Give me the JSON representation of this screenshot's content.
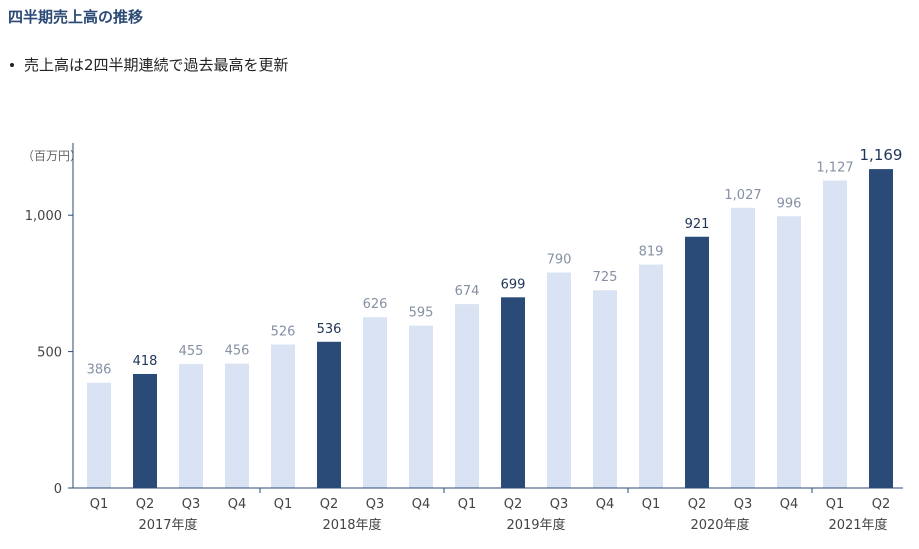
{
  "header": {
    "title": "四半期売上高の推移",
    "bullet": "売上高は2四半期連続で過去最高を更新"
  },
  "chart_data": {
    "type": "bar",
    "unit_label": "（百万円）",
    "ylim": [
      0,
      1250
    ],
    "yticks": [
      0,
      500,
      1000
    ],
    "ytick_labels": [
      "0",
      "500",
      "1,000"
    ],
    "categories": [
      "Q1",
      "Q2",
      "Q3",
      "Q4",
      "Q1",
      "Q2",
      "Q3",
      "Q4",
      "Q1",
      "Q2",
      "Q3",
      "Q4",
      "Q1",
      "Q2",
      "Q3",
      "Q4",
      "Q1",
      "Q2"
    ],
    "values": [
      386,
      418,
      455,
      456,
      526,
      536,
      626,
      595,
      674,
      699,
      790,
      725,
      819,
      921,
      1027,
      996,
      1127,
      1169
    ],
    "value_labels": [
      "386",
      "418",
      "455",
      "456",
      "526",
      "536",
      "626",
      "595",
      "674",
      "699",
      "790",
      "725",
      "819",
      "921",
      "1,027",
      "996",
      "1,127",
      "1,169"
    ],
    "highlighted": [
      false,
      true,
      false,
      false,
      false,
      true,
      false,
      false,
      false,
      true,
      false,
      false,
      false,
      true,
      false,
      false,
      false,
      true
    ],
    "year_groups": [
      {
        "label": "2017年度",
        "start": 0,
        "count": 4
      },
      {
        "label": "2018年度",
        "start": 4,
        "count": 4
      },
      {
        "label": "2019年度",
        "start": 8,
        "count": 4
      },
      {
        "label": "2020年度",
        "start": 12,
        "count": 4
      },
      {
        "label": "2021年度",
        "start": 16,
        "count": 2
      }
    ],
    "colors": {
      "bar": "#dae3f4",
      "bar_highlight": "#2a4a77",
      "label": "#8590a5",
      "label_highlight": "#1f3659",
      "axis": "#2a4a77",
      "tick_text": "#444444"
    },
    "grid": false
  }
}
